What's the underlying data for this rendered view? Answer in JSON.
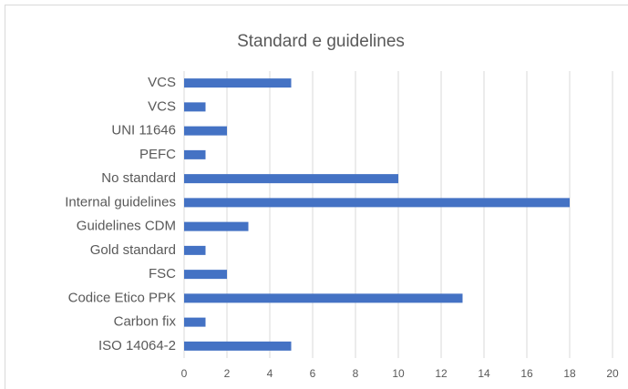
{
  "chart_data": {
    "type": "barh",
    "title": "Standard e guidelines",
    "categories": [
      "VCS",
      "VCS",
      "UNI 11646",
      "PEFC",
      "No standard",
      "Internal guidelines",
      "Guidelines CDM",
      "Gold standard",
      "FSC",
      "Codice Etico PPK",
      "Carbon fix",
      "ISO 14064-2"
    ],
    "values": [
      5,
      1,
      2,
      1,
      10,
      18,
      3,
      1,
      2,
      13,
      1,
      5
    ],
    "color": "#4472c4",
    "xlim": [
      0,
      20
    ],
    "xticks": [
      0,
      2,
      4,
      6,
      8,
      10,
      12,
      14,
      16,
      18,
      20
    ],
    "grid": true
  }
}
